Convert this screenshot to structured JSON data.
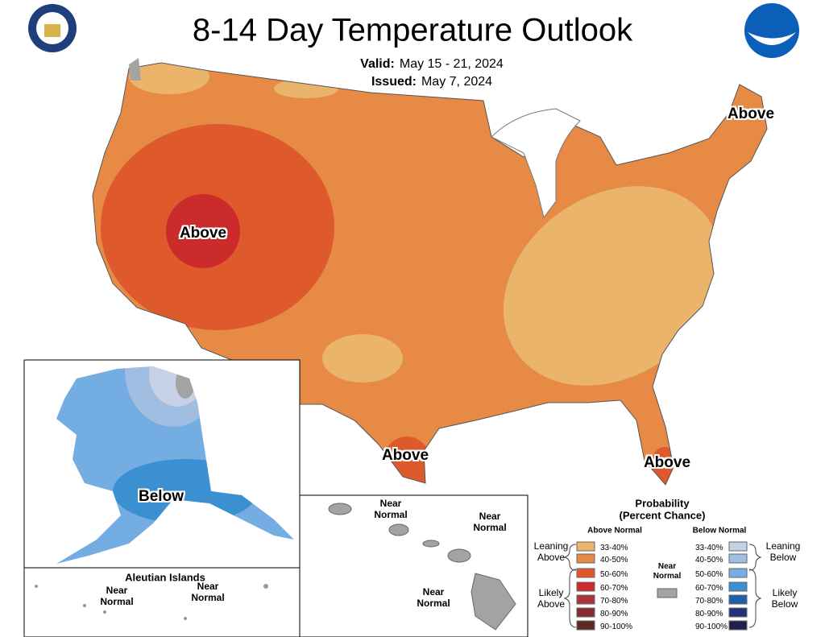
{
  "title": "8-14 Day Temperature Outlook",
  "valid": {
    "label": "Valid:",
    "value": "May 15 - 21, 2024"
  },
  "issued": {
    "label": "Issued:",
    "value": "May 7, 2024"
  },
  "map_labels": {
    "west": "Above",
    "northeast": "Above",
    "texas": "Above",
    "florida": "Above",
    "alaska": "Below",
    "aleutian_title": "Aleutian Islands",
    "aleutian_near_1": "Near Normal",
    "aleutian_near_2": "Near Normal",
    "hawaii_near_1": "Near Normal",
    "hawaii_near_2": "Near Normal",
    "hawaii_near_3": "Near Normal"
  },
  "legend": {
    "title": "Probability",
    "subtitle": "(Percent Chance)",
    "above_header": "Above Normal",
    "below_header": "Below Normal",
    "leaning_above": "Leaning Above",
    "likely_above": "Likely Above",
    "near_normal": {
      "label": "Near Normal",
      "color": "#a3a3a3"
    },
    "leaning_below": "Leaning Below",
    "likely_below": "Likely Below",
    "above": [
      {
        "range": "33-40%",
        "color": "#eab46b"
      },
      {
        "range": "40-50%",
        "color": "#e68a45"
      },
      {
        "range": "50-60%",
        "color": "#de5a2d"
      },
      {
        "range": "60-70%",
        "color": "#cc2b2b"
      },
      {
        "range": "70-80%",
        "color": "#a9353e"
      },
      {
        "range": "80-90%",
        "color": "#8a2b32"
      },
      {
        "range": "90-100%",
        "color": "#5b2a20"
      }
    ],
    "below": [
      {
        "range": "33-40%",
        "color": "#c6d1e7"
      },
      {
        "range": "40-50%",
        "color": "#a0bee1"
      },
      {
        "range": "50-60%",
        "color": "#73ade2"
      },
      {
        "range": "60-70%",
        "color": "#3a90d1"
      },
      {
        "range": "70-80%",
        "color": "#1f60a8"
      },
      {
        "range": "80-90%",
        "color": "#25307b"
      },
      {
        "range": "90-100%",
        "color": "#1f1f52"
      }
    ]
  }
}
